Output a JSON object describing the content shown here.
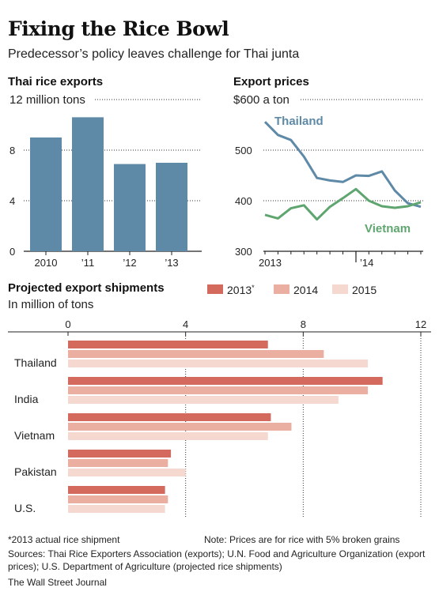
{
  "headline": "Fixing the Rice Bowl",
  "dek": "Predecessor’s policy leaves challenge for Thai junta",
  "colors": {
    "bar_blue": "#5e8aa7",
    "thailand_line": "#5e8aa7",
    "vietnam_line": "#5fa56f",
    "s2013": "#d46a5e",
    "s2014": "#eaafa0",
    "s2015": "#f5d9d0"
  },
  "chart_data": [
    {
      "type": "bar",
      "title": "Thai rice exports",
      "unit_label": "12 million tons",
      "categories": [
        "2010",
        "’11",
        "’12",
        "’13"
      ],
      "values": [
        9.0,
        10.6,
        6.9,
        7.0
      ],
      "ylim": [
        0,
        12
      ],
      "yticks": [
        "0",
        "4",
        "8"
      ],
      "grid": "dotted"
    },
    {
      "type": "line",
      "title": "Export prices",
      "unit_label": "$600 a ton",
      "ylim": [
        300,
        600
      ],
      "yticks": [
        "300",
        "400",
        "500"
      ],
      "xticks": [
        "2013",
        "’14"
      ],
      "series": [
        {
          "name": "Thailand",
          "values": [
            556,
            530,
            520,
            487,
            445,
            440,
            437,
            450,
            449,
            458,
            420,
            395,
            388
          ]
        },
        {
          "name": "Vietnam",
          "values": [
            372,
            365,
            385,
            391,
            363,
            388,
            405,
            423,
            400,
            389,
            386,
            389,
            397
          ]
        }
      ],
      "grid": "dotted"
    },
    {
      "type": "bar",
      "orientation": "horizontal",
      "title": "Projected export shipments",
      "subtitle": "In million of tons",
      "categories": [
        "Thailand",
        "India",
        "Vietnam",
        "Pakistan",
        "U.S."
      ],
      "xlim": [
        0,
        12
      ],
      "xticks": [
        "0",
        "4",
        "8",
        "12"
      ],
      "legend": {
        "placement": "top-right",
        "note_marker": "*"
      },
      "series": [
        {
          "name": "2013",
          "values": [
            6.8,
            10.7,
            6.9,
            3.5,
            3.3
          ]
        },
        {
          "name": "2014",
          "values": [
            8.7,
            10.2,
            7.6,
            3.4,
            3.4
          ]
        },
        {
          "name": "2015",
          "values": [
            10.2,
            9.2,
            6.8,
            4.0,
            3.3
          ]
        }
      ]
    }
  ],
  "footer": {
    "footnote": "*2013 actual rice shipment",
    "note": "Note: Prices are for rice with 5% broken grains",
    "sources": "Sources: Thai Rice Exporters Association (exports); U.N. Food and Agriculture Organization (export prices); U.S. Department of Agriculture (projected rice shipments)",
    "credit": "The Wall Street Journal"
  }
}
